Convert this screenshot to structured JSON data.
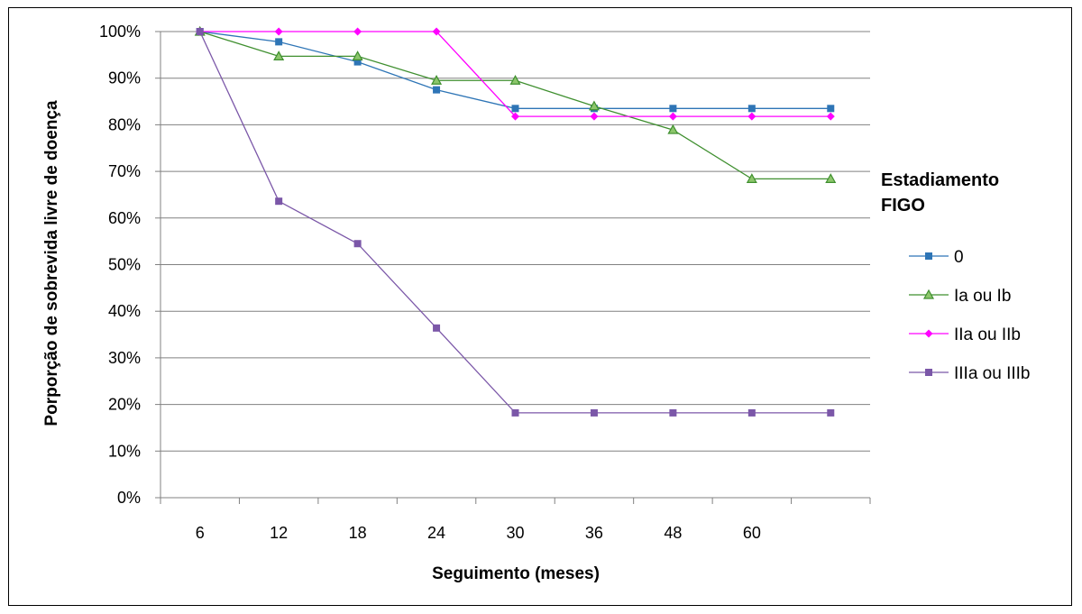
{
  "chart_data": {
    "type": "line",
    "title": "",
    "xlabel": "Seguimento (meses)",
    "ylabel": "Porporção de sobrevida livre de doença",
    "categories": [
      "6",
      "12",
      "18",
      "24",
      "30",
      "36",
      "48",
      "60",
      ""
    ],
    "ylim": [
      0,
      100
    ],
    "y_ticks": [
      "0%",
      "10%",
      "20%",
      "30%",
      "40%",
      "50%",
      "60%",
      "70%",
      "80%",
      "90%",
      "100%"
    ],
    "grid": "horizontal",
    "legend": {
      "title": [
        "Estadiamento",
        "FIGO"
      ],
      "placement": "right"
    },
    "series": [
      {
        "name": "0",
        "color": "#2E75B6",
        "marker": "square",
        "values": [
          100,
          97.8,
          93.5,
          87.5,
          83.5,
          83.5,
          83.5,
          83.5,
          83.5
        ]
      },
      {
        "name": "Ia ou Ib",
        "color": "#3F8F2F",
        "marker": "triangle",
        "values": [
          100,
          94.7,
          94.7,
          89.5,
          89.5,
          84,
          78.9,
          68.4,
          68.4
        ]
      },
      {
        "name": "IIa ou IIb",
        "color": "#FF00FF",
        "marker": "diamond",
        "values": [
          100,
          100,
          100,
          100,
          81.8,
          81.8,
          81.8,
          81.8,
          81.8
        ]
      },
      {
        "name": "IIIa ou IIIb",
        "color": "#7B57A8",
        "marker": "square",
        "values": [
          100,
          63.6,
          54.5,
          36.4,
          18.2,
          18.2,
          18.2,
          18.2,
          18.2
        ]
      }
    ]
  }
}
